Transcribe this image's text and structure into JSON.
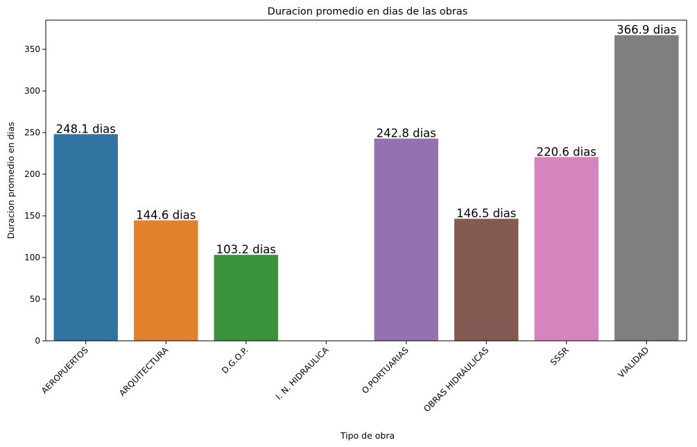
{
  "chart_data": {
    "type": "bar",
    "title": "Duracion promedio en dias de las obras",
    "xlabel": "Tipo de obra",
    "ylabel": "Duracion promedio en dias",
    "ylim": [
      0,
      385
    ],
    "yticks": [
      0,
      50,
      100,
      150,
      200,
      250,
      300,
      350
    ],
    "categories": [
      "AEROPUERTOS",
      "ARQUITECTURA",
      "D.G.O.P.",
      "I. N. HIDRAULICA",
      "O.PORTUARIAS",
      "OBRAS HIDRÁULICAS",
      "SSSR",
      "VIALIDAD"
    ],
    "values": [
      248.1,
      144.6,
      103.2,
      null,
      242.8,
      146.5,
      220.6,
      366.9
    ],
    "data_labels": [
      "248.1 dias",
      "144.6 dias",
      "103.2 dias",
      "",
      "242.8 dias",
      "146.5 dias",
      "220.6 dias",
      "366.9 dias"
    ],
    "colors": [
      "#3274a1",
      "#e1812c",
      "#3a923a",
      "#c03d3e",
      "#9372b2",
      "#845b53",
      "#d684bd",
      "#7f7f7f"
    ],
    "grid": false,
    "legend": "none"
  }
}
